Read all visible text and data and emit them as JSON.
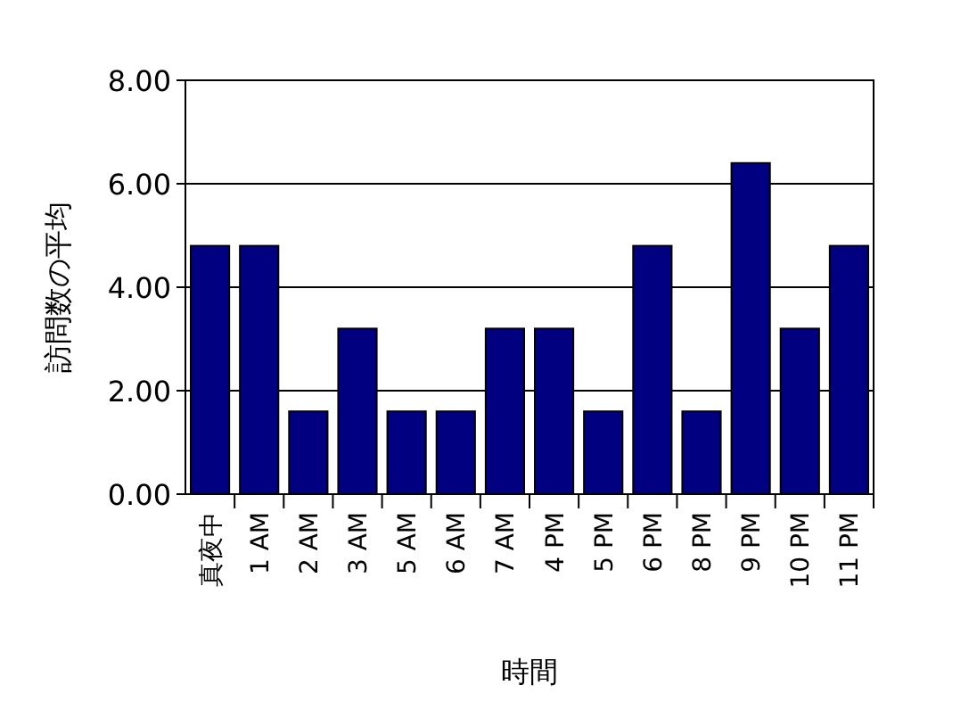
{
  "chart_data": {
    "type": "bar",
    "xlabel": "時間",
    "ylabel": "訪問数の平均",
    "categories": [
      "真夜中",
      "1 AM",
      "2 AM",
      "3 AM",
      "5 AM",
      "6 AM",
      "7 AM",
      "4 PM",
      "5 PM",
      "6 PM",
      "8 PM",
      "9 PM",
      "10 PM",
      "11 PM"
    ],
    "values": [
      4.8,
      4.8,
      1.6,
      3.2,
      1.6,
      1.6,
      3.2,
      3.2,
      1.6,
      4.8,
      1.6,
      6.4,
      3.2,
      4.8
    ],
    "color": "#000080",
    "ylim": [
      0,
      8
    ],
    "yticks": [
      {
        "value": 0,
        "label": "0.00"
      },
      {
        "value": 2,
        "label": "2.00"
      },
      {
        "value": 4,
        "label": "4.00"
      },
      {
        "value": 6,
        "label": "6.00"
      },
      {
        "value": 8,
        "label": "8.00"
      }
    ],
    "grid": "y"
  }
}
